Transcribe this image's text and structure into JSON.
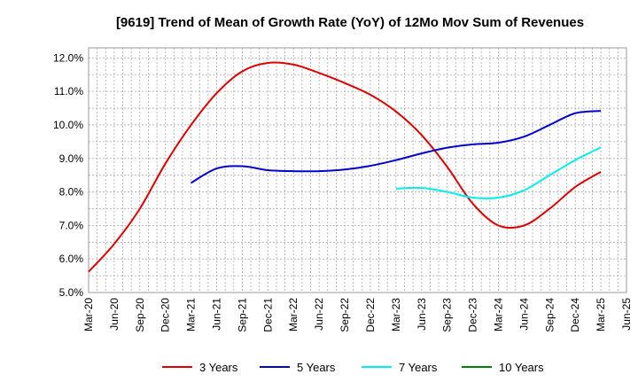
{
  "chart_data": {
    "type": "line",
    "title": "[9619]  Trend of Mean of Growth Rate (YoY) of 12Mo Mov Sum of Revenues",
    "xlabel": "",
    "ylabel": "",
    "ylim": [
      5.0,
      12.3
    ],
    "y_ticks": [
      "5.0%",
      "6.0%",
      "7.0%",
      "8.0%",
      "9.0%",
      "10.0%",
      "11.0%",
      "12.0%"
    ],
    "y_tick_values": [
      5,
      6,
      7,
      8,
      9,
      10,
      11,
      12
    ],
    "categories": [
      "Mar-20",
      "Jun-20",
      "Sep-20",
      "Dec-20",
      "Mar-21",
      "Jun-21",
      "Sep-21",
      "Dec-21",
      "Mar-22",
      "Jun-22",
      "Sep-22",
      "Dec-22",
      "Mar-23",
      "Jun-23",
      "Sep-23",
      "Dec-23",
      "Mar-24",
      "Jun-24",
      "Sep-24",
      "Dec-24",
      "Mar-25",
      "Jun-25"
    ],
    "grid": true,
    "legend_position": "bottom",
    "series": [
      {
        "name": "3 Years",
        "color": "#dd0000",
        "values": [
          5.62,
          6.45,
          7.5,
          8.85,
          10.0,
          10.95,
          11.6,
          11.85,
          11.8,
          11.55,
          11.25,
          10.9,
          10.4,
          9.7,
          8.75,
          7.65,
          7.0,
          7.0,
          7.5,
          8.15,
          8.6,
          null
        ]
      },
      {
        "name": "5 Years",
        "color": "#0000cc",
        "values": [
          null,
          null,
          null,
          null,
          8.27,
          8.7,
          8.77,
          8.65,
          8.62,
          8.62,
          8.67,
          8.78,
          8.95,
          9.15,
          9.32,
          9.42,
          9.47,
          9.65,
          10.0,
          10.35,
          10.42,
          null
        ]
      },
      {
        "name": "7 Years",
        "color": "#00eeee",
        "values": [
          null,
          null,
          null,
          null,
          null,
          null,
          null,
          null,
          null,
          null,
          null,
          null,
          8.1,
          8.12,
          8.0,
          7.83,
          7.83,
          8.05,
          8.5,
          8.95,
          9.33,
          null
        ]
      },
      {
        "name": "10 Years",
        "color": "#008000",
        "values": [
          null,
          null,
          null,
          null,
          null,
          null,
          null,
          null,
          null,
          null,
          null,
          null,
          null,
          null,
          null,
          null,
          null,
          null,
          null,
          null,
          null,
          null
        ]
      }
    ]
  }
}
